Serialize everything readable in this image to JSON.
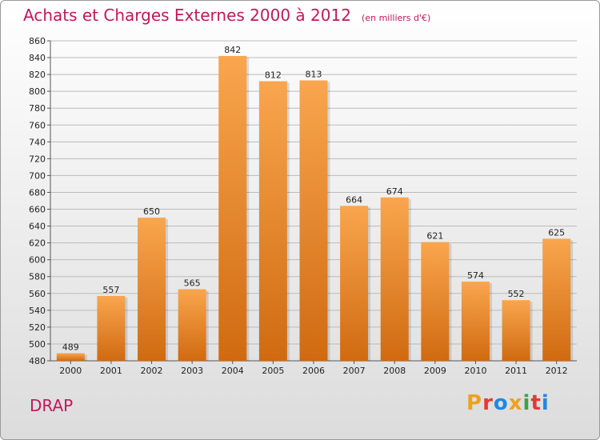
{
  "title": "Achats et Charges Externes 2000 à 2012",
  "subtitle": "(en milliers d'€)",
  "commune": "DRAP",
  "logo_letters": [
    "P",
    "r",
    "o",
    "x",
    "i",
    "t",
    "i"
  ],
  "logo_colors": [
    "#f0a020",
    "#e53935",
    "#1e88e5",
    "#f0a020",
    "#43a047",
    "#e53935",
    "#1e88e5"
  ],
  "colors": {
    "title": "#c2185b",
    "bar_light": "#f9a64e",
    "bar_dark": "#d06a10",
    "grid": "#bbbbbb"
  },
  "chart_data": {
    "type": "bar",
    "title": "Achats et Charges Externes 2000 à 2012",
    "subtitle": "(en milliers d'€)",
    "categories": [
      "2000",
      "2001",
      "2002",
      "2003",
      "2004",
      "2005",
      "2006",
      "2007",
      "2008",
      "2009",
      "2010",
      "2011",
      "2012"
    ],
    "values": [
      489,
      557,
      650,
      565,
      842,
      812,
      813,
      664,
      674,
      621,
      574,
      552,
      625
    ],
    "ylim": [
      480,
      860
    ],
    "yticks": [
      480,
      500,
      520,
      540,
      560,
      580,
      600,
      620,
      640,
      660,
      680,
      700,
      720,
      740,
      760,
      780,
      800,
      820,
      840,
      860
    ],
    "grid": true,
    "xlabel": "",
    "ylabel": ""
  }
}
